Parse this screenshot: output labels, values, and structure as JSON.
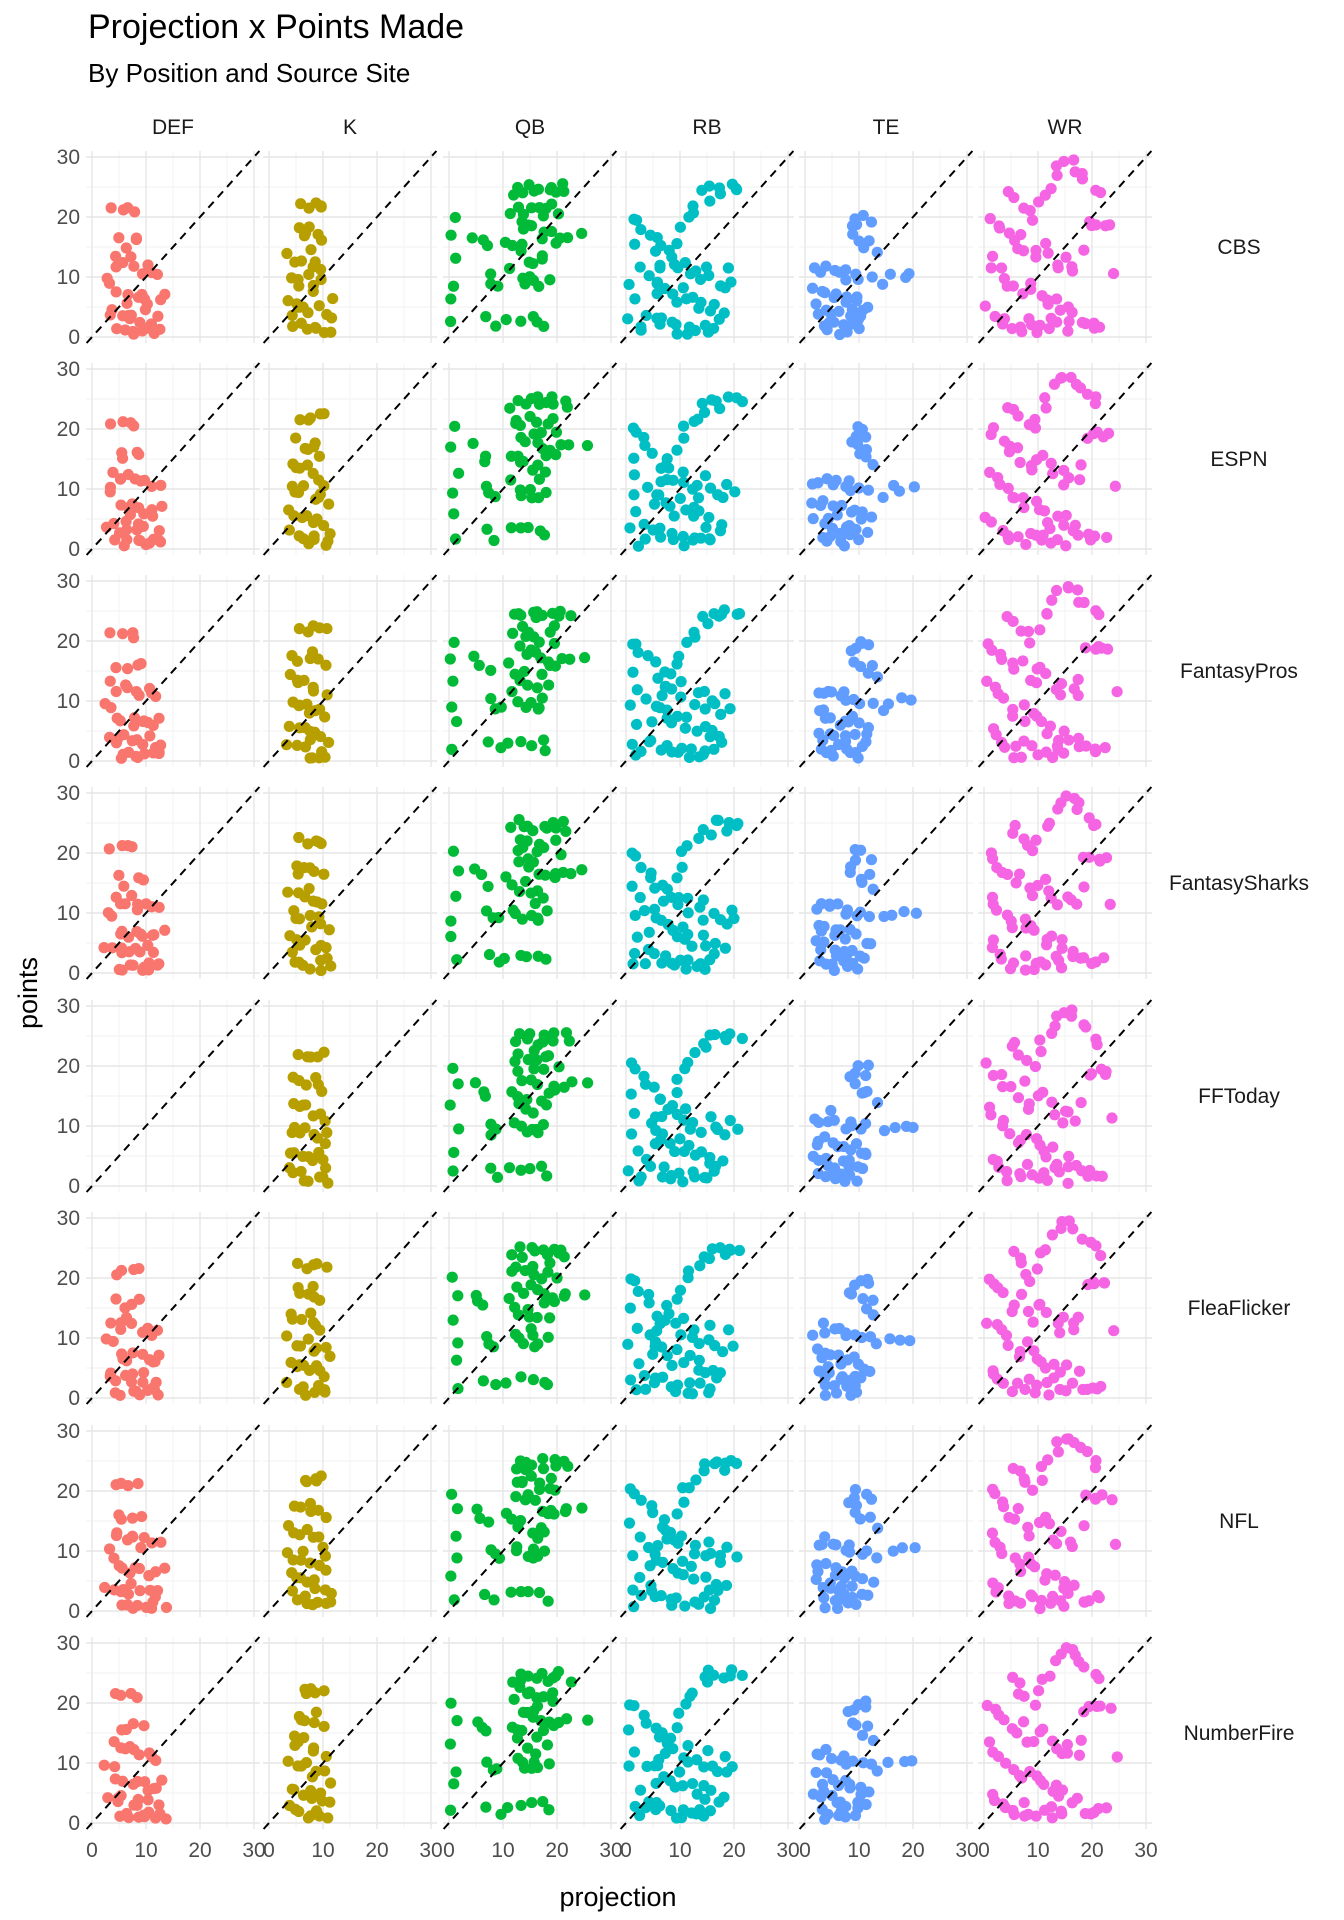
{
  "chart_data": {
    "type": "scatter",
    "title": "Projection x Points Made",
    "subtitle": "By Position and Source Site",
    "xlabel": "projection",
    "ylabel": "points",
    "xlim": [
      0,
      30
    ],
    "ylim": [
      0,
      30
    ],
    "x_ticks": [
      "0",
      "10",
      "20",
      "30"
    ],
    "y_ticks": [
      "0",
      "10",
      "20",
      "30"
    ],
    "reference_line": "y = x (dashed)",
    "grid": true,
    "legend": "none",
    "facet_columns": [
      "DEF",
      "K",
      "QB",
      "RB",
      "TE",
      "WR"
    ],
    "facet_rows": [
      "CBS",
      "ESPN",
      "FantasyPros",
      "FantasySharks",
      "FFToday",
      "FleaFlicker",
      "NFL",
      "NumberFire"
    ],
    "position_colors": {
      "DEF": "#F8766D",
      "K": "#B79F00",
      "QB": "#00BA38",
      "RB": "#00BFC4",
      "TE": "#619CFF",
      "WR": "#F564E3"
    },
    "points_by_position": {
      "DEF": [
        [
          4,
          21
        ],
        [
          6,
          21
        ],
        [
          7,
          21
        ],
        [
          8,
          21
        ],
        [
          5,
          16
        ],
        [
          6,
          15
        ],
        [
          8,
          16
        ],
        [
          9,
          16
        ],
        [
          4,
          13
        ],
        [
          5,
          12
        ],
        [
          6,
          12
        ],
        [
          7,
          13
        ],
        [
          8,
          12
        ],
        [
          9,
          11
        ],
        [
          10,
          12
        ],
        [
          11,
          11
        ],
        [
          12,
          11
        ],
        [
          3,
          10
        ],
        [
          4,
          9
        ],
        [
          5,
          7
        ],
        [
          6,
          7
        ],
        [
          7,
          6
        ],
        [
          8,
          7
        ],
        [
          9,
          7
        ],
        [
          10,
          6
        ],
        [
          11,
          6
        ],
        [
          12,
          6
        ],
        [
          13,
          7
        ],
        [
          3,
          4
        ],
        [
          4,
          4
        ],
        [
          5,
          3
        ],
        [
          6,
          4
        ],
        [
          7,
          3
        ],
        [
          8,
          4
        ],
        [
          9,
          3
        ],
        [
          10,
          4
        ],
        [
          11,
          2
        ],
        [
          12,
          3
        ],
        [
          5,
          1
        ],
        [
          6,
          1
        ],
        [
          7,
          1
        ],
        [
          8,
          1
        ],
        [
          9,
          1
        ],
        [
          10,
          1
        ],
        [
          11,
          1
        ],
        [
          12,
          1
        ],
        [
          13,
          1
        ]
      ],
      "K": [
        [
          6,
          22
        ],
        [
          7,
          22
        ],
        [
          8,
          22
        ],
        [
          9,
          22
        ],
        [
          10,
          22
        ],
        [
          5,
          18
        ],
        [
          6,
          17
        ],
        [
          7,
          17
        ],
        [
          8,
          18
        ],
        [
          9,
          17
        ],
        [
          10,
          16
        ],
        [
          4,
          14
        ],
        [
          5,
          13
        ],
        [
          6,
          13
        ],
        [
          7,
          14
        ],
        [
          8,
          12
        ],
        [
          9,
          12
        ],
        [
          10,
          11
        ],
        [
          4,
          10
        ],
        [
          5,
          9
        ],
        [
          6,
          9
        ],
        [
          7,
          10
        ],
        [
          8,
          8
        ],
        [
          9,
          8
        ],
        [
          10,
          9
        ],
        [
          11,
          7
        ],
        [
          4,
          6
        ],
        [
          5,
          6
        ],
        [
          6,
          5
        ],
        [
          7,
          5
        ],
        [
          8,
          4
        ],
        [
          9,
          5
        ],
        [
          10,
          4
        ],
        [
          11,
          3
        ],
        [
          4,
          3
        ],
        [
          5,
          2
        ],
        [
          6,
          2
        ],
        [
          7,
          1
        ],
        [
          8,
          1
        ],
        [
          9,
          2
        ],
        [
          10,
          1
        ],
        [
          11,
          1
        ]
      ],
      "QB": [
        [
          1,
          20
        ],
        [
          1,
          17
        ],
        [
          1,
          13
        ],
        [
          1,
          9
        ],
        [
          1,
          6
        ],
        [
          1,
          2
        ],
        [
          5,
          17
        ],
        [
          6,
          16
        ],
        [
          7,
          15
        ],
        [
          7,
          10
        ],
        [
          8,
          9
        ],
        [
          9,
          9
        ],
        [
          7,
          3
        ],
        [
          9,
          2
        ],
        [
          11,
          3
        ],
        [
          13,
          3
        ],
        [
          15,
          3
        ],
        [
          17,
          3
        ],
        [
          18,
          2
        ],
        [
          12,
          24
        ],
        [
          13,
          25
        ],
        [
          14,
          24
        ],
        [
          15,
          25
        ],
        [
          16,
          24
        ],
        [
          17,
          25
        ],
        [
          18,
          24
        ],
        [
          19,
          25
        ],
        [
          20,
          24
        ],
        [
          21,
          25
        ],
        [
          22,
          24
        ],
        [
          12,
          21
        ],
        [
          13,
          22
        ],
        [
          14,
          21
        ],
        [
          15,
          22
        ],
        [
          16,
          21
        ],
        [
          17,
          20
        ],
        [
          18,
          21
        ],
        [
          19,
          22
        ],
        [
          20,
          20
        ],
        [
          13,
          19
        ],
        [
          14,
          18
        ],
        [
          15,
          19
        ],
        [
          16,
          18
        ],
        [
          17,
          17
        ],
        [
          18,
          16
        ],
        [
          19,
          17
        ],
        [
          20,
          16
        ],
        [
          21,
          17
        ],
        [
          22,
          17
        ],
        [
          25,
          17
        ],
        [
          11,
          16
        ],
        [
          12,
          15
        ],
        [
          13,
          14
        ],
        [
          14,
          15
        ],
        [
          15,
          13
        ],
        [
          16,
          12
        ],
        [
          17,
          14
        ],
        [
          18,
          13
        ],
        [
          12,
          11
        ],
        [
          13,
          10
        ],
        [
          14,
          9
        ],
        [
          15,
          10
        ],
        [
          16,
          9
        ],
        [
          17,
          9
        ],
        [
          18,
          10
        ]
      ],
      "RB": [
        [
          1,
          20
        ],
        [
          2,
          19
        ],
        [
          3,
          18
        ],
        [
          1,
          15
        ],
        [
          2,
          12
        ],
        [
          1,
          9
        ],
        [
          2,
          6
        ],
        [
          1,
          3
        ],
        [
          2,
          1
        ],
        [
          3,
          2
        ],
        [
          4,
          4
        ],
        [
          5,
          7
        ],
        [
          6,
          9
        ],
        [
          7,
          12
        ],
        [
          8,
          14
        ],
        [
          9,
          16
        ],
        [
          10,
          18
        ],
        [
          11,
          20
        ],
        [
          12,
          21
        ],
        [
          13,
          22
        ],
        [
          14,
          24
        ],
        [
          15,
          23
        ],
        [
          16,
          25
        ],
        [
          17,
          25
        ],
        [
          18,
          24
        ],
        [
          19,
          25
        ],
        [
          20,
          25
        ],
        [
          21,
          25
        ],
        [
          4,
          17
        ],
        [
          5,
          16
        ],
        [
          6,
          14
        ],
        [
          7,
          15
        ],
        [
          8,
          13
        ],
        [
          9,
          12
        ],
        [
          10,
          11
        ],
        [
          11,
          13
        ],
        [
          12,
          10
        ],
        [
          13,
          11
        ],
        [
          14,
          9
        ],
        [
          15,
          12
        ],
        [
          16,
          10
        ],
        [
          17,
          9
        ],
        [
          18,
          8
        ],
        [
          19,
          11
        ],
        [
          20,
          9
        ],
        [
          4,
          10
        ],
        [
          5,
          9
        ],
        [
          6,
          11
        ],
        [
          7,
          8
        ],
        [
          8,
          7
        ],
        [
          9,
          6
        ],
        [
          10,
          8
        ],
        [
          11,
          6
        ],
        [
          12,
          7
        ],
        [
          13,
          5
        ],
        [
          14,
          6
        ],
        [
          15,
          4
        ],
        [
          16,
          5
        ],
        [
          17,
          3
        ],
        [
          18,
          4
        ],
        [
          5,
          3
        ],
        [
          6,
          2
        ],
        [
          7,
          3
        ],
        [
          8,
          2
        ],
        [
          9,
          1
        ],
        [
          10,
          2
        ],
        [
          11,
          1
        ],
        [
          12,
          2
        ],
        [
          13,
          1
        ],
        [
          14,
          2
        ],
        [
          15,
          1
        ],
        [
          16,
          2
        ]
      ],
      "TE": [
        [
          8,
          18
        ],
        [
          9,
          19
        ],
        [
          10,
          20
        ],
        [
          11,
          20
        ],
        [
          12,
          19
        ],
        [
          9,
          17
        ],
        [
          10,
          16
        ],
        [
          11,
          15
        ],
        [
          12,
          16
        ],
        [
          13,
          14
        ],
        [
          2,
          11
        ],
        [
          3,
          11
        ],
        [
          4,
          12
        ],
        [
          5,
          11
        ],
        [
          6,
          11
        ],
        [
          7,
          10
        ],
        [
          8,
          11
        ],
        [
          9,
          10
        ],
        [
          10,
          10
        ],
        [
          12,
          10
        ],
        [
          14,
          9
        ],
        [
          16,
          10
        ],
        [
          18,
          10
        ],
        [
          20,
          10
        ],
        [
          2,
          8
        ],
        [
          3,
          7
        ],
        [
          4,
          8
        ],
        [
          5,
          7
        ],
        [
          6,
          6
        ],
        [
          7,
          7
        ],
        [
          8,
          6
        ],
        [
          9,
          7
        ],
        [
          10,
          6
        ],
        [
          11,
          5
        ],
        [
          2,
          5
        ],
        [
          3,
          4
        ],
        [
          4,
          5
        ],
        [
          5,
          4
        ],
        [
          6,
          3
        ],
        [
          7,
          4
        ],
        [
          8,
          3
        ],
        [
          9,
          4
        ],
        [
          10,
          3
        ],
        [
          11,
          3
        ],
        [
          12,
          5
        ],
        [
          3,
          2
        ],
        [
          4,
          1
        ],
        [
          5,
          2
        ],
        [
          6,
          1
        ],
        [
          7,
          2
        ],
        [
          8,
          1
        ],
        [
          9,
          2
        ],
        [
          10,
          1
        ]
      ],
      "WR": [
        [
          5,
          24
        ],
        [
          6,
          23
        ],
        [
          7,
          22
        ],
        [
          8,
          21
        ],
        [
          9,
          20
        ],
        [
          10,
          22
        ],
        [
          11,
          24
        ],
        [
          12,
          25
        ],
        [
          13,
          27
        ],
        [
          14,
          28
        ],
        [
          15,
          29
        ],
        [
          16,
          29
        ],
        [
          17,
          28
        ],
        [
          18,
          27
        ],
        [
          19,
          26
        ],
        [
          20,
          25
        ],
        [
          21,
          24
        ],
        [
          1,
          20
        ],
        [
          2,
          19
        ],
        [
          3,
          18
        ],
        [
          4,
          17
        ],
        [
          5,
          16
        ],
        [
          6,
          15
        ],
        [
          7,
          17
        ],
        [
          8,
          14
        ],
        [
          9,
          13
        ],
        [
          10,
          15
        ],
        [
          11,
          16
        ],
        [
          12,
          14
        ],
        [
          13,
          12
        ],
        [
          14,
          11
        ],
        [
          15,
          13
        ],
        [
          16,
          12
        ],
        [
          17,
          11
        ],
        [
          18,
          14
        ],
        [
          19,
          19
        ],
        [
          20,
          19
        ],
        [
          21,
          19
        ],
        [
          22,
          19
        ],
        [
          23,
          19
        ],
        [
          24,
          11
        ],
        [
          1,
          13
        ],
        [
          2,
          12
        ],
        [
          3,
          11
        ],
        [
          4,
          10
        ],
        [
          5,
          9
        ],
        [
          6,
          8
        ],
        [
          7,
          7
        ],
        [
          8,
          9
        ],
        [
          9,
          8
        ],
        [
          10,
          7
        ],
        [
          11,
          6
        ],
        [
          12,
          5
        ],
        [
          13,
          6
        ],
        [
          14,
          4
        ],
        [
          15,
          5
        ],
        [
          16,
          3
        ],
        [
          17,
          4
        ],
        [
          18,
          2
        ],
        [
          19,
          2
        ],
        [
          20,
          2
        ],
        [
          21,
          2
        ],
        [
          22,
          2
        ],
        [
          1,
          5
        ],
        [
          2,
          4
        ],
        [
          3,
          3
        ],
        [
          4,
          2
        ],
        [
          5,
          1
        ],
        [
          6,
          2
        ],
        [
          7,
          1
        ],
        [
          8,
          3
        ],
        [
          9,
          2
        ],
        [
          10,
          1
        ],
        [
          11,
          2
        ],
        [
          12,
          1
        ],
        [
          13,
          3
        ],
        [
          14,
          2
        ],
        [
          15,
          1
        ]
      ]
    }
  }
}
